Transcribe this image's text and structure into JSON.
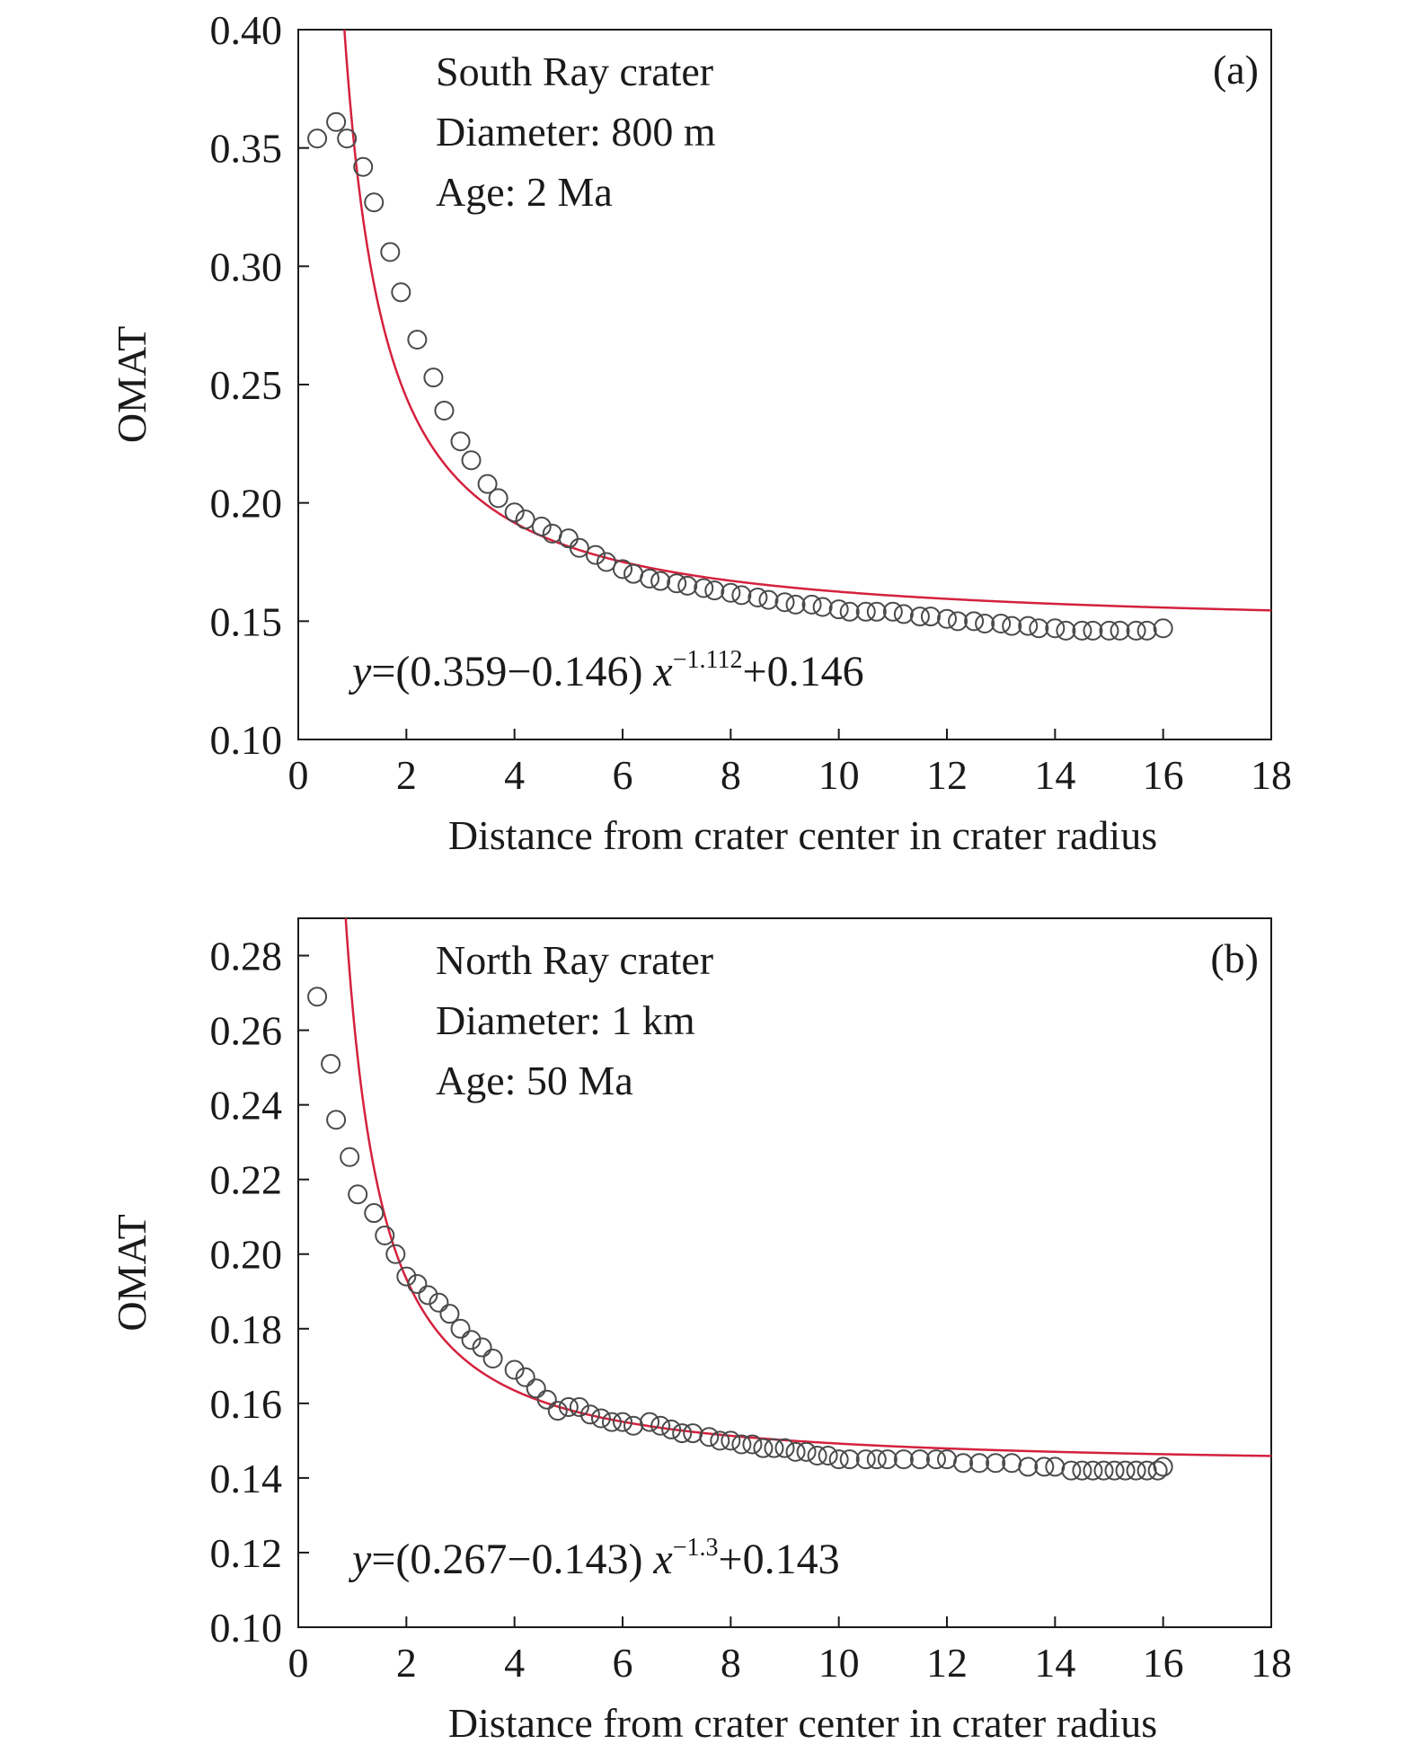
{
  "chart_data": [
    {
      "type": "scatter",
      "panel_label": "(a)",
      "annotation_lines": [
        "South Ray crater",
        "Diameter: 800 m",
        "Age: 2 Ma"
      ],
      "xlabel": "Distance from crater center in crater radius",
      "ylabel": "OMAT",
      "xlim": [
        0,
        18
      ],
      "ylim": [
        0.1,
        0.4
      ],
      "xticks": [
        "0",
        "2",
        "4",
        "6",
        "8",
        "10",
        "12",
        "14",
        "16",
        "18"
      ],
      "yticks": [
        "0.10",
        "0.15",
        "0.20",
        "0.25",
        "0.30",
        "0.35",
        "0.40"
      ],
      "grid": false,
      "equation": {
        "y": "y",
        "mid": "=(0.359−0.146) ",
        "x": "x",
        "exp": "−1.112",
        "tail": "+0.146"
      },
      "fit": {
        "a": 0.359,
        "c": 0.146,
        "p": 1.112
      },
      "series": [
        {
          "marker": "open-circle",
          "x": [
            0.35,
            0.7,
            0.9,
            1.2,
            1.4,
            1.7,
            1.9,
            2.2,
            2.5,
            2.7,
            3.0,
            3.2,
            3.5,
            3.7,
            4.0,
            4.2,
            4.5,
            4.7,
            5.0,
            5.2,
            5.5,
            5.7,
            6.0,
            6.2,
            6.5,
            6.7,
            7.0,
            7.2,
            7.5,
            7.7,
            8.0,
            8.2,
            8.5,
            8.7,
            9.0,
            9.2,
            9.5,
            9.7,
            10.0,
            10.2,
            10.5,
            10.7,
            11.0,
            11.2,
            11.5,
            11.7,
            12.0,
            12.2,
            12.5,
            12.7,
            13.0,
            13.2,
            13.5,
            13.7,
            14.0,
            14.2,
            14.5,
            14.7,
            15.0,
            15.2,
            15.5,
            15.7,
            16.0
          ],
          "y": [
            0.354,
            0.361,
            0.354,
            0.342,
            0.327,
            0.306,
            0.289,
            0.269,
            0.253,
            0.239,
            0.226,
            0.218,
            0.208,
            0.202,
            0.196,
            0.193,
            0.19,
            0.187,
            0.185,
            0.181,
            0.178,
            0.175,
            0.172,
            0.17,
            0.168,
            0.167,
            0.166,
            0.165,
            0.164,
            0.163,
            0.162,
            0.161,
            0.16,
            0.159,
            0.158,
            0.157,
            0.157,
            0.156,
            0.155,
            0.154,
            0.154,
            0.154,
            0.154,
            0.153,
            0.152,
            0.152,
            0.151,
            0.15,
            0.15,
            0.149,
            0.149,
            0.148,
            0.148,
            0.147,
            0.147,
            0.146,
            0.146,
            0.146,
            0.146,
            0.146,
            0.146,
            0.146,
            0.147
          ]
        }
      ]
    },
    {
      "type": "scatter",
      "panel_label": "(b)",
      "annotation_lines": [
        "North Ray crater",
        "Diameter: 1 km",
        "Age: 50 Ma"
      ],
      "xlabel": "Distance from crater center in crater radius",
      "ylabel": "OMAT",
      "xlim": [
        0,
        18
      ],
      "ylim": [
        0.1,
        0.29
      ],
      "xticks": [
        "0",
        "2",
        "4",
        "6",
        "8",
        "10",
        "12",
        "14",
        "16",
        "18"
      ],
      "yticks": [
        "0.10",
        "0.12",
        "0.14",
        "0.16",
        "0.18",
        "0.20",
        "0.22",
        "0.24",
        "0.26",
        "0.28"
      ],
      "grid": false,
      "equation": {
        "y": "y",
        "mid": "=(0.267−0.143) ",
        "x": "x",
        "exp": "−1.3",
        "tail": "+0.143"
      },
      "fit": {
        "a": 0.267,
        "c": 0.143,
        "p": 1.3
      },
      "series": [
        {
          "marker": "open-circle",
          "x": [
            0.35,
            0.6,
            0.7,
            0.95,
            1.1,
            1.4,
            1.6,
            1.8,
            2.0,
            2.2,
            2.4,
            2.6,
            2.8,
            3.0,
            3.2,
            3.4,
            3.6,
            4.0,
            4.2,
            4.4,
            4.6,
            4.8,
            5.0,
            5.2,
            5.4,
            5.6,
            5.8,
            6.0,
            6.2,
            6.5,
            6.7,
            6.9,
            7.1,
            7.3,
            7.6,
            7.8,
            8.0,
            8.2,
            8.4,
            8.6,
            8.8,
            9.0,
            9.2,
            9.4,
            9.6,
            9.8,
            10.0,
            10.2,
            10.5,
            10.7,
            10.9,
            11.2,
            11.5,
            11.8,
            12.0,
            12.3,
            12.6,
            12.9,
            13.2,
            13.5,
            13.8,
            14.0,
            14.3,
            14.5,
            14.7,
            14.9,
            15.1,
            15.3,
            15.5,
            15.7,
            15.9,
            16.0
          ],
          "y": [
            0.269,
            0.251,
            0.236,
            0.226,
            0.216,
            0.211,
            0.205,
            0.2,
            0.194,
            0.192,
            0.189,
            0.187,
            0.184,
            0.18,
            0.177,
            0.175,
            0.172,
            0.169,
            0.167,
            0.164,
            0.161,
            0.158,
            0.159,
            0.159,
            0.157,
            0.156,
            0.155,
            0.155,
            0.154,
            0.155,
            0.154,
            0.153,
            0.152,
            0.152,
            0.151,
            0.15,
            0.15,
            0.149,
            0.149,
            0.148,
            0.148,
            0.148,
            0.147,
            0.147,
            0.146,
            0.146,
            0.145,
            0.145,
            0.145,
            0.145,
            0.145,
            0.145,
            0.145,
            0.145,
            0.145,
            0.144,
            0.144,
            0.144,
            0.144,
            0.143,
            0.143,
            0.143,
            0.142,
            0.142,
            0.142,
            0.142,
            0.142,
            0.142,
            0.142,
            0.142,
            0.142,
            0.143
          ]
        }
      ]
    }
  ],
  "colors": {
    "fit_line": "#d4213d",
    "marker": "#4a4a4a",
    "text": "#1a1a1a"
  }
}
